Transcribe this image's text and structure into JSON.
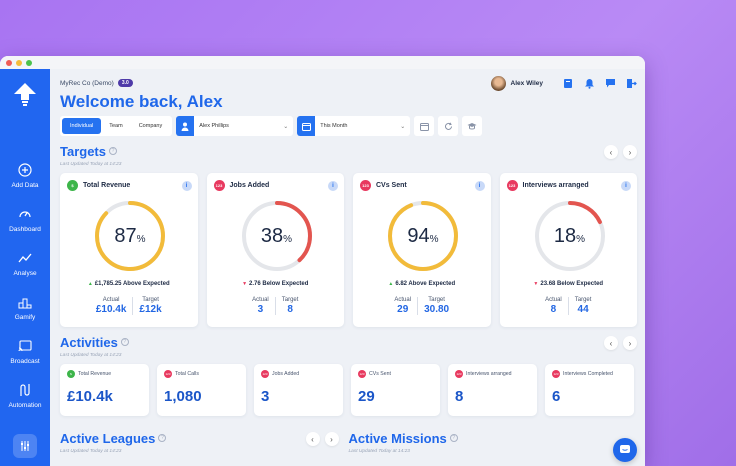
{
  "colors": {
    "brand": "#2166f0",
    "success": "#3db54a",
    "danger": "#e8395f",
    "gauge_yellow": "#f2bb3a",
    "gauge_red": "#e3554f",
    "track": "#e4e6ea"
  },
  "sidebar": {
    "items": [
      {
        "label": "Add Data",
        "icon": "plus-circle-icon"
      },
      {
        "label": "Dashboard",
        "icon": "speedometer-icon"
      },
      {
        "label": "Analyse",
        "icon": "trend-icon"
      },
      {
        "label": "Gamify",
        "icon": "podium-icon"
      },
      {
        "label": "Broadcast",
        "icon": "cast-icon"
      },
      {
        "label": "Automation",
        "icon": "flow-icon"
      }
    ]
  },
  "header": {
    "company": "MyRec Co (Demo)",
    "version": "3.0",
    "user": "Alex Wiley",
    "welcome": "Welcome back, Alex"
  },
  "filters": {
    "tabs": [
      "Individual",
      "Team",
      "Company"
    ],
    "active_tab": "Individual",
    "person": "Alex Phillips",
    "period": "This Month"
  },
  "targets": {
    "title": "Targets",
    "updated": "Last Updated Today at 14:23",
    "cards": [
      {
        "label": "Total Revenue",
        "badge": "$",
        "badge_color": "#3db54a",
        "percent": 87,
        "value_percent": "87",
        "status": "£1,785.25 Above Expected",
        "direction": "up",
        "gauge_color": "#f2bb3a",
        "actual_label": "Actual",
        "target_label": "Target",
        "actual": "£10.4k",
        "target": "£12k"
      },
      {
        "label": "Jobs Added",
        "badge": "123",
        "badge_color": "#e8395f",
        "percent": 38,
        "value_percent": "38",
        "status": "2.76 Below Expected",
        "direction": "down",
        "gauge_color": "#e3554f",
        "actual_label": "Actual",
        "target_label": "Target",
        "actual": "3",
        "target": "8"
      },
      {
        "label": "CVs Sent",
        "badge": "123",
        "badge_color": "#e8395f",
        "percent": 94,
        "value_percent": "94",
        "status": "6.82 Above Expected",
        "direction": "up",
        "gauge_color": "#f2bb3a",
        "actual_label": "Actual",
        "target_label": "Target",
        "actual": "29",
        "target": "30.80"
      },
      {
        "label": "Interviews arranged",
        "badge": "123",
        "badge_color": "#e8395f",
        "percent": 18,
        "value_percent": "18",
        "status": "23.68 Below Expected",
        "direction": "down",
        "gauge_color": "#e3554f",
        "actual_label": "Actual",
        "target_label": "Target",
        "actual": "8",
        "target": "44"
      }
    ]
  },
  "activities": {
    "title": "Activities",
    "updated": "Last Updated Today at 14:23",
    "cards": [
      {
        "label": "Total Revenue",
        "badge": "$",
        "badge_color": "#3db54a",
        "value": "£10.4k"
      },
      {
        "label": "Total Calls",
        "badge": "123",
        "badge_color": "#e8395f",
        "value": "1,080"
      },
      {
        "label": "Jobs Added",
        "badge": "123",
        "badge_color": "#e8395f",
        "value": "3"
      },
      {
        "label": "CVs Sent",
        "badge": "123",
        "badge_color": "#e8395f",
        "value": "29"
      },
      {
        "label": "Interviews arranged",
        "badge": "123",
        "badge_color": "#e8395f",
        "value": "8"
      },
      {
        "label": "Interviews Completed",
        "badge": "123",
        "badge_color": "#e8395f",
        "value": "6"
      }
    ]
  },
  "leagues": {
    "title": "Active Leagues",
    "updated": "Last Updated Today at 14:23"
  },
  "missions": {
    "title": "Active Missions",
    "updated": "Last Updated Today at 14:23"
  }
}
